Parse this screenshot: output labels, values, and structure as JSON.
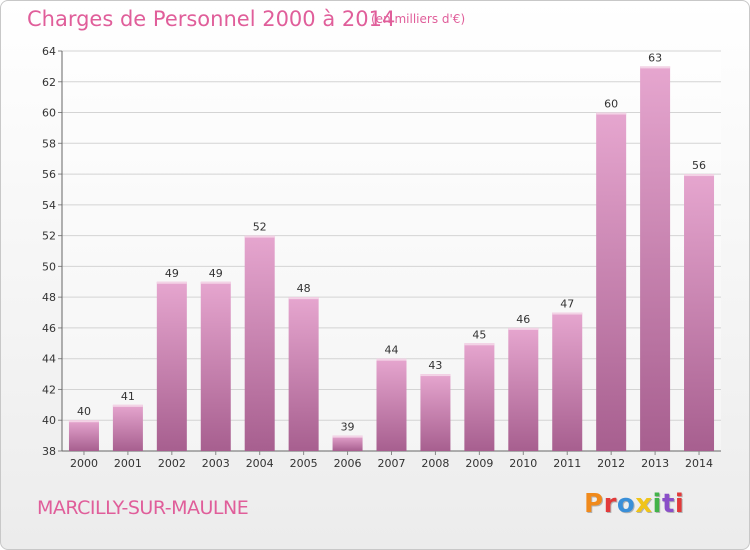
{
  "header": {
    "title": "Charges de Personnel 2000 à 2014",
    "subtitle": "(en milliers d'€)"
  },
  "footer": {
    "commune": "MARCILLY-SUR-MAULNE",
    "logo_text": "Proxiti",
    "logo_colors": [
      "#f08a1c",
      "#e23a3a",
      "#3a8fd8",
      "#f0c419",
      "#42b34a",
      "#8a4fc8",
      "#e23a3a"
    ]
  },
  "colors": {
    "bar_top": "#e6a6cf",
    "bar_bottom": "#a75f8f",
    "accent": "#e05e9a"
  },
  "chart_data": {
    "type": "bar",
    "title": "Charges de Personnel 2000 à 2014",
    "subtitle": "(en milliers d'€)",
    "categories": [
      "2000",
      "2001",
      "2002",
      "2003",
      "2004",
      "2005",
      "2006",
      "2007",
      "2008",
      "2009",
      "2010",
      "2011",
      "2012",
      "2013",
      "2014"
    ],
    "values": [
      40,
      41,
      49,
      49,
      52,
      48,
      39,
      44,
      43,
      45,
      46,
      47,
      60,
      63,
      56
    ],
    "ylim": [
      38,
      64
    ],
    "yticks": [
      38,
      40,
      42,
      44,
      46,
      48,
      50,
      52,
      54,
      56,
      58,
      60,
      62,
      64
    ],
    "grid": true,
    "legend": "none"
  }
}
